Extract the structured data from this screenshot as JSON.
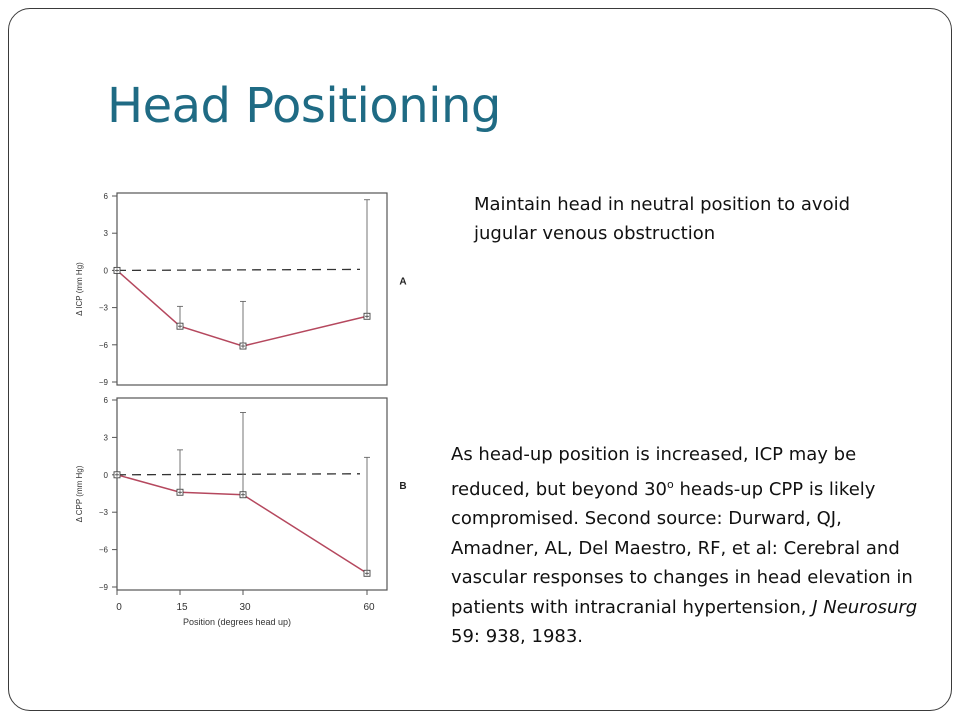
{
  "slide": {
    "title": "Head Positioning",
    "note_top": "Maintain head in neutral position to avoid jugular venous obstruction",
    "note_bottom": {
      "part1": "As head-up position is increased, ICP may be reduced, but beyond 30",
      "sup": "o",
      "part2": " heads-up CPP is likely compromised. Second source:  Durward, QJ, Amadner, AL, Del Maestro, RF, et al:  Cerebral and vascular responses to changes in head elevation in patients with intracranial hypertension, ",
      "journal": "J Neurosurg",
      "part3": " 59: 938, 1983."
    }
  },
  "colors": {
    "title": "#1f6b84",
    "line": "#b5485e",
    "axis": "#555555",
    "frame": "#3a3a3a"
  },
  "chart_data": [
    {
      "type": "line",
      "panel_label": "A",
      "ylabel": "Δ ICP (mm Hg)",
      "xlabel": "",
      "x": [
        0,
        15,
        30,
        60
      ],
      "xlim": [
        0,
        60
      ],
      "ylim": [
        -9,
        6
      ],
      "yticks": [
        6,
        3,
        0,
        -3,
        -6,
        -9
      ],
      "xticks": [],
      "baseline": 0,
      "series": [
        {
          "values": [
            0,
            -4.5,
            -6.1,
            -3.7
          ],
          "error_upper": [
            0,
            -2.9,
            -2.5,
            5.7
          ]
        }
      ]
    },
    {
      "type": "line",
      "panel_label": "B",
      "ylabel": "Δ CPP (mm Hg)",
      "xlabel": "Position (degrees head up)",
      "x": [
        0,
        15,
        30,
        60
      ],
      "xlim": [
        0,
        60
      ],
      "ylim": [
        -9,
        6
      ],
      "yticks": [
        6,
        3,
        0,
        -3,
        -6,
        -9
      ],
      "xticks": [
        0,
        15,
        30,
        60
      ],
      "baseline": 0,
      "series": [
        {
          "values": [
            0,
            -1.4,
            -1.6,
            -7.9
          ],
          "error_upper": [
            0,
            2.0,
            5.0,
            1.4
          ]
        }
      ]
    }
  ]
}
